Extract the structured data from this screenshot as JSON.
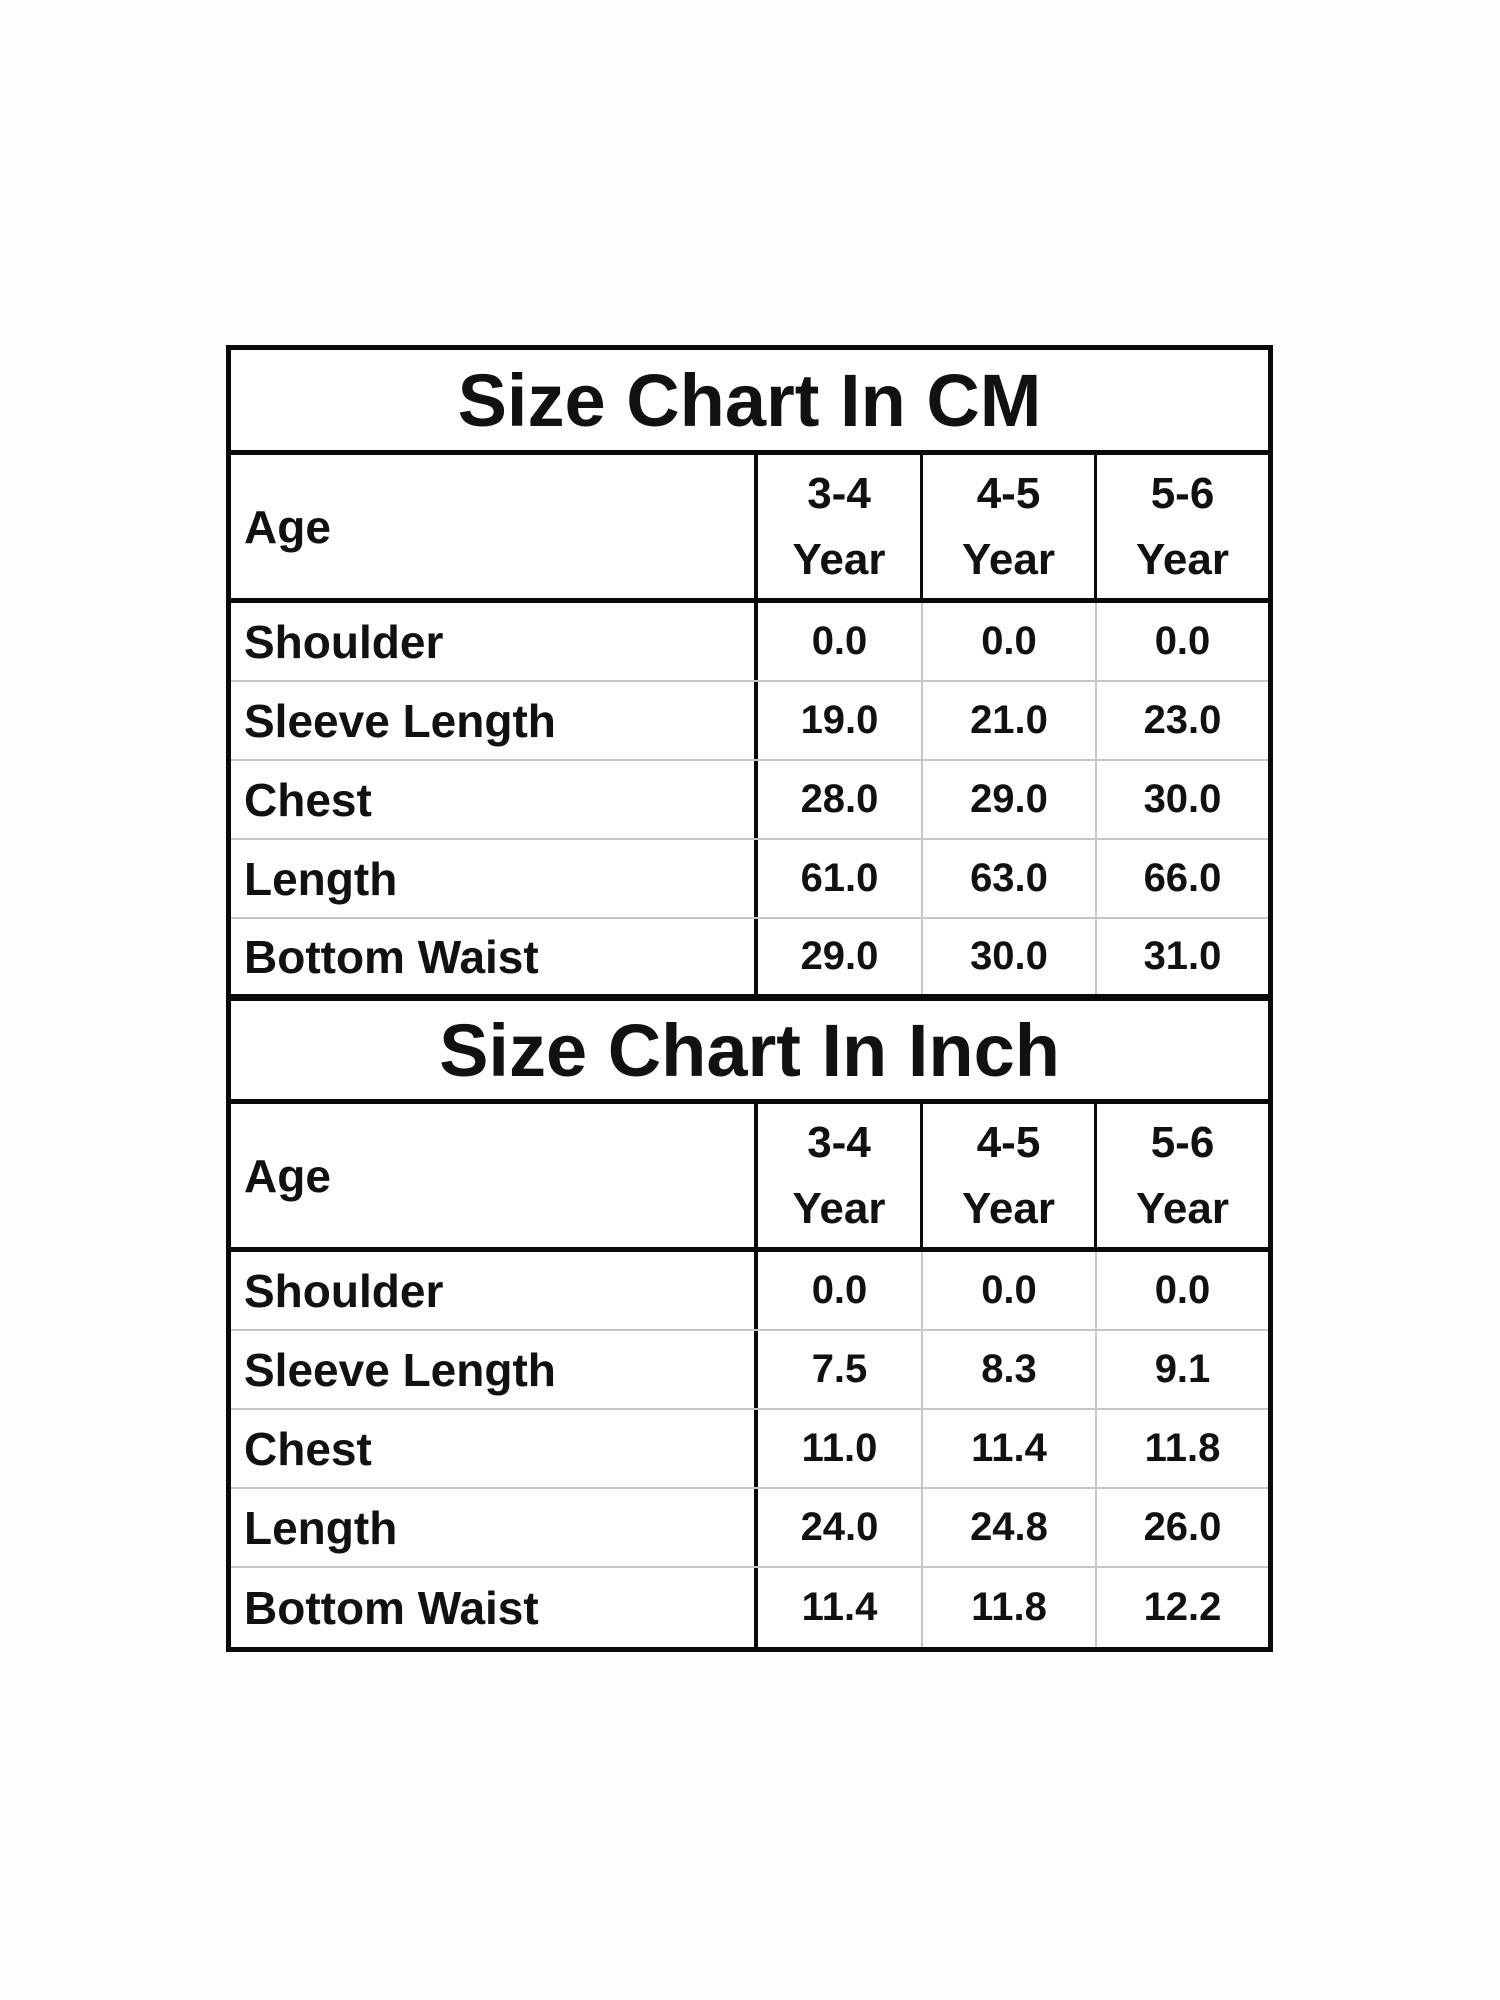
{
  "page": {
    "background_color": "#fdfdfd",
    "text_color": "#111111",
    "border_color": "#0a0a0a",
    "gridline_color": "#c6c6c6"
  },
  "tables": [
    {
      "title": "Size Chart In CM",
      "age_label": "Age",
      "columns": [
        {
          "range": "3-4",
          "unit": "Year"
        },
        {
          "range": "4-5",
          "unit": "Year"
        },
        {
          "range": "5-6",
          "unit": "Year"
        }
      ],
      "rows": [
        {
          "label": "Shoulder",
          "values": [
            "0.0",
            "0.0",
            "0.0"
          ]
        },
        {
          "label": "Sleeve Length",
          "values": [
            "19.0",
            "21.0",
            "23.0"
          ]
        },
        {
          "label": "Chest",
          "values": [
            "28.0",
            "29.0",
            "30.0"
          ]
        },
        {
          "label": "Length",
          "values": [
            "61.0",
            "63.0",
            "66.0"
          ]
        },
        {
          "label": "Bottom Waist",
          "values": [
            "29.0",
            "30.0",
            "31.0"
          ]
        }
      ]
    },
    {
      "title": "Size Chart In Inch",
      "age_label": "Age",
      "columns": [
        {
          "range": "3-4",
          "unit": "Year"
        },
        {
          "range": "4-5",
          "unit": "Year"
        },
        {
          "range": "5-6",
          "unit": "Year"
        }
      ],
      "rows": [
        {
          "label": "Shoulder",
          "values": [
            "0.0",
            "0.0",
            "0.0"
          ]
        },
        {
          "label": "Sleeve Length",
          "values": [
            "7.5",
            "8.3",
            "9.1"
          ]
        },
        {
          "label": "Chest",
          "values": [
            "11.0",
            "11.4",
            "11.8"
          ]
        },
        {
          "label": "Length",
          "values": [
            "24.0",
            "24.8",
            "26.0"
          ]
        },
        {
          "label": "Bottom Waist",
          "values": [
            "11.4",
            "11.8",
            "12.2"
          ]
        }
      ]
    }
  ]
}
